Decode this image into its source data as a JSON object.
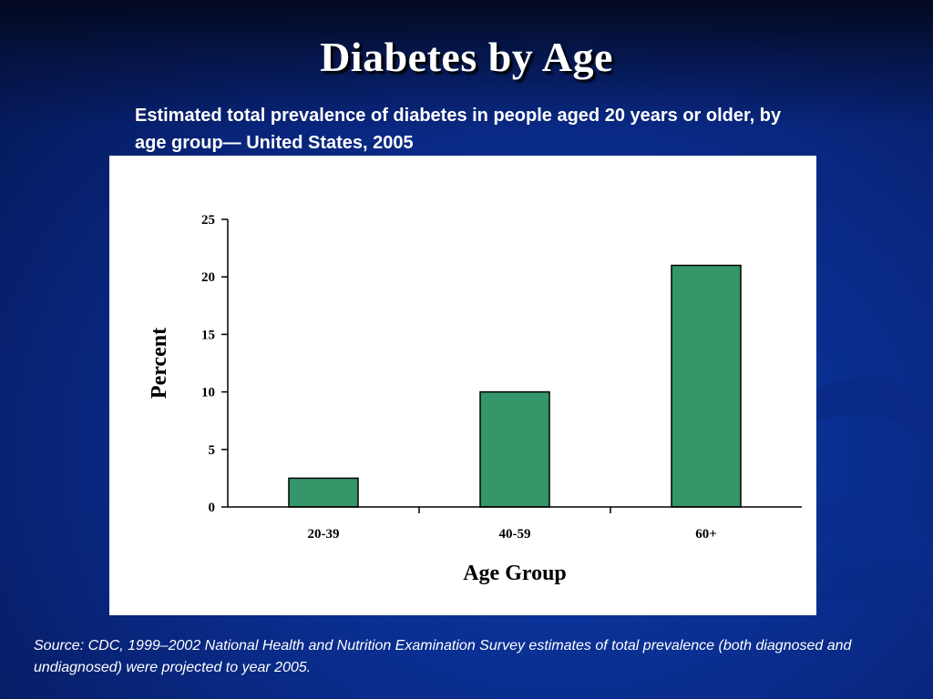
{
  "slide": {
    "title": "Diabetes by Age",
    "subtitle": "Estimated total prevalence of diabetes in people aged 20 years or older, by age group— United States, 2005",
    "source": "Source: CDC, 1999–2002 National Health and Nutrition Examination Survey estimates of total prevalence (both diagnosed and undiagnosed) were projected to year 2005."
  },
  "chart_data": {
    "type": "bar",
    "title": "",
    "xlabel": "Age Group",
    "ylabel": "Percent",
    "categories": [
      "20-39",
      "40-59",
      "60+"
    ],
    "values": [
      2.5,
      10,
      21
    ],
    "ylim": [
      0,
      25
    ],
    "yticks": [
      0,
      5,
      10,
      15,
      20,
      25
    ],
    "grid": false,
    "legend": "none",
    "bar_color": "#35966a",
    "bar_edge_color": "#000000"
  },
  "theme": {
    "background": "#0a2f92",
    "text_color": "#ffffff"
  }
}
